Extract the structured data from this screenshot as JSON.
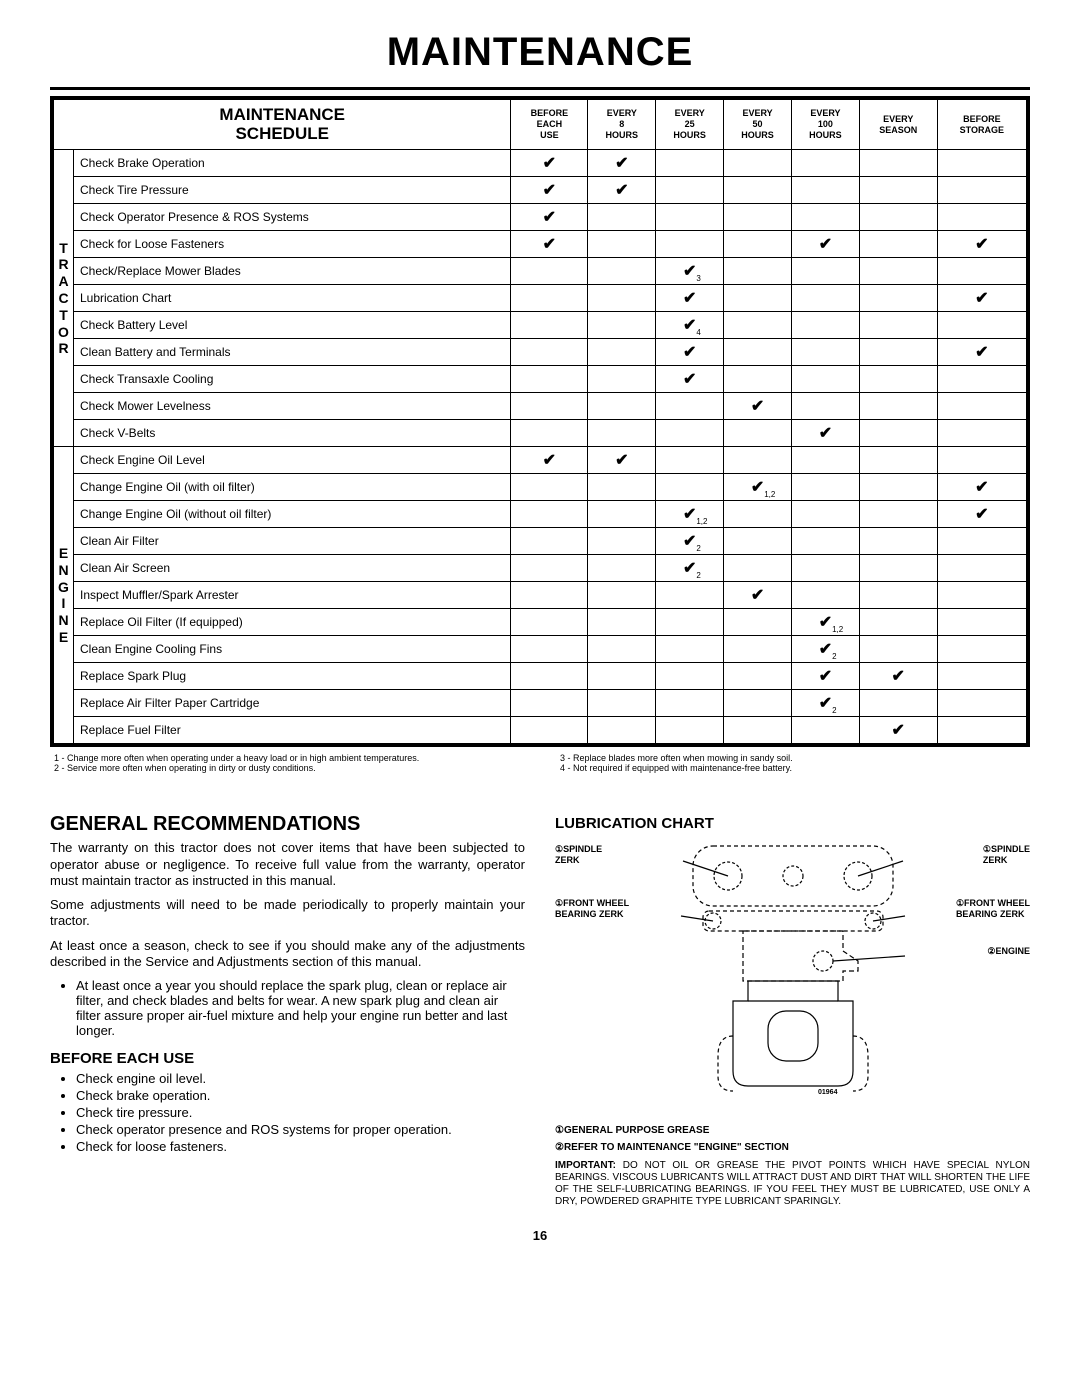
{
  "title": "MAINTENANCE",
  "schedule": {
    "header": "MAINTENANCE\nSCHEDULE",
    "cols": [
      "BEFORE\nEACH\nUSE",
      "EVERY\n8\nHOURS",
      "EVERY\n25\nHOURS",
      "EVERY\n50\nHOURS",
      "EVERY\n100\nHOURS",
      "EVERY\nSEASON",
      "BEFORE\nSTORAGE"
    ],
    "sections": [
      {
        "label": "TRACTOR",
        "rows": [
          {
            "task": "Check Brake Operation",
            "c": [
              1,
              1,
              0,
              0,
              0,
              0,
              0
            ]
          },
          {
            "task": "Check Tire Pressure",
            "c": [
              1,
              1,
              0,
              0,
              0,
              0,
              0
            ]
          },
          {
            "task": "Check Operator Presence & ROS Systems",
            "c": [
              1,
              0,
              0,
              0,
              0,
              0,
              0
            ]
          },
          {
            "task": "Check for Loose Fasteners",
            "c": [
              1,
              0,
              0,
              0,
              1,
              0,
              1
            ]
          },
          {
            "task": "Check/Replace Mower Blades",
            "c": [
              0,
              0,
              1,
              0,
              0,
              0,
              0
            ],
            "n": [
              null,
              null,
              "3"
            ]
          },
          {
            "task": "Lubrication Chart",
            "c": [
              0,
              0,
              1,
              0,
              0,
              0,
              1
            ]
          },
          {
            "task": "Check Battery Level",
            "c": [
              0,
              0,
              1,
              0,
              0,
              0,
              0
            ],
            "n": [
              null,
              null,
              "4"
            ]
          },
          {
            "task": "Clean Battery and Terminals",
            "c": [
              0,
              0,
              1,
              0,
              0,
              0,
              1
            ]
          },
          {
            "task": "Check Transaxle Cooling",
            "c": [
              0,
              0,
              1,
              0,
              0,
              0,
              0
            ]
          },
          {
            "task": "Check Mower Levelness",
            "c": [
              0,
              0,
              0,
              1,
              0,
              0,
              0
            ]
          },
          {
            "task": "Check V-Belts",
            "c": [
              0,
              0,
              0,
              0,
              1,
              0,
              0
            ]
          }
        ]
      },
      {
        "label": "ENGINE",
        "rows": [
          {
            "task": "Check Engine Oil Level",
            "c": [
              1,
              1,
              0,
              0,
              0,
              0,
              0
            ]
          },
          {
            "task": "Change Engine Oil (with oil filter)",
            "c": [
              0,
              0,
              0,
              1,
              0,
              0,
              1
            ],
            "n": [
              null,
              null,
              null,
              "1,2"
            ]
          },
          {
            "task": "Change Engine Oil (without oil filter)",
            "c": [
              0,
              0,
              1,
              0,
              0,
              0,
              1
            ],
            "n": [
              null,
              null,
              "1,2"
            ]
          },
          {
            "task": "Clean Air Filter",
            "c": [
              0,
              0,
              1,
              0,
              0,
              0,
              0
            ],
            "n": [
              null,
              null,
              "2"
            ]
          },
          {
            "task": "Clean Air Screen",
            "c": [
              0,
              0,
              1,
              0,
              0,
              0,
              0
            ],
            "n": [
              null,
              null,
              "2"
            ]
          },
          {
            "task": "Inspect Muffler/Spark Arrester",
            "c": [
              0,
              0,
              0,
              1,
              0,
              0,
              0
            ]
          },
          {
            "task": "Replace Oil Filter (If equipped)",
            "c": [
              0,
              0,
              0,
              0,
              1,
              0,
              0
            ],
            "n": [
              null,
              null,
              null,
              null,
              "1,2"
            ]
          },
          {
            "task": "Clean Engine Cooling Fins",
            "c": [
              0,
              0,
              0,
              0,
              1,
              0,
              0
            ],
            "n": [
              null,
              null,
              null,
              null,
              "2"
            ]
          },
          {
            "task": "Replace Spark Plug",
            "c": [
              0,
              0,
              0,
              0,
              1,
              1,
              0
            ]
          },
          {
            "task": "Replace Air Filter Paper Cartridge",
            "c": [
              0,
              0,
              0,
              0,
              1,
              0,
              0
            ],
            "n": [
              null,
              null,
              null,
              null,
              "2"
            ]
          },
          {
            "task": "Replace Fuel Filter",
            "c": [
              0,
              0,
              0,
              0,
              0,
              1,
              0
            ]
          }
        ]
      }
    ]
  },
  "footnotes": {
    "left": [
      "1 - Change more often when operating under a heavy load or in high ambient temperatures.",
      "2 - Service more often when operating in dirty or dusty conditions."
    ],
    "right": [
      "3 - Replace blades more often when mowing in sandy soil.",
      "4 - Not required if equipped with maintenance-free battery."
    ]
  },
  "gen": {
    "title": "GENERAL RECOMMENDATIONS",
    "p1": "The warranty on this tractor does not cover items that have been subjected to operator abuse or negligence.  To receive full value from the warranty, operator must maintain tractor as instructed in this manual.",
    "p2": "Some adjustments will need to be made periodically to properly maintain your tractor.",
    "p3": "At least once a season, check to see if you should make any of the adjustments described in the Service and Adjustments section of this manual.",
    "bullet1": "At least once a year you should replace the spark plug, clean or replace air filter, and check blades and belts for wear.  A new spark plug and clean air filter assure proper air-fuel mixture and help your engine run better and last longer."
  },
  "before": {
    "title": "BEFORE EACH USE",
    "items": [
      "Check engine oil level.",
      "Check brake operation.",
      "Check tire pressure.",
      "Check operator presence and ROS systems for proper operation.",
      "Check for loose fasteners."
    ]
  },
  "lub": {
    "title": "LUBRICATION CHART",
    "labels": {
      "sl": "①SPINDLE\nZERK",
      "sr": "①SPINDLE\nZERK",
      "fl": "①FRONT WHEEL\nBEARING  ZERK",
      "fr": "①FRONT WHEEL\nBEARING  ZERK",
      "eng": "②ENGINE"
    },
    "partnum": "01964",
    "legend1": "①GENERAL PURPOSE GREASE",
    "legend2": "②REFER TO MAINTENANCE \"ENGINE\" SECTION",
    "important": "IMPORTANT:  DO NOT OIL OR GREASE THE PIVOT POINTS WHICH HAVE SPECIAL NYLON BEARINGS.  VISCOUS LUBRICANTS WILL ATTRACT DUST AND DIRT THAT WILL SHORTEN THE LIFE OF THE SELF-LUBRICATING BEARINGS.  IF YOU FEEL THEY MUST BE LUBRICATED, USE ONLY A DRY, POWDERED GRAPHITE TYPE LUBRICANT SPARINGLY."
  },
  "pagenum": "16"
}
